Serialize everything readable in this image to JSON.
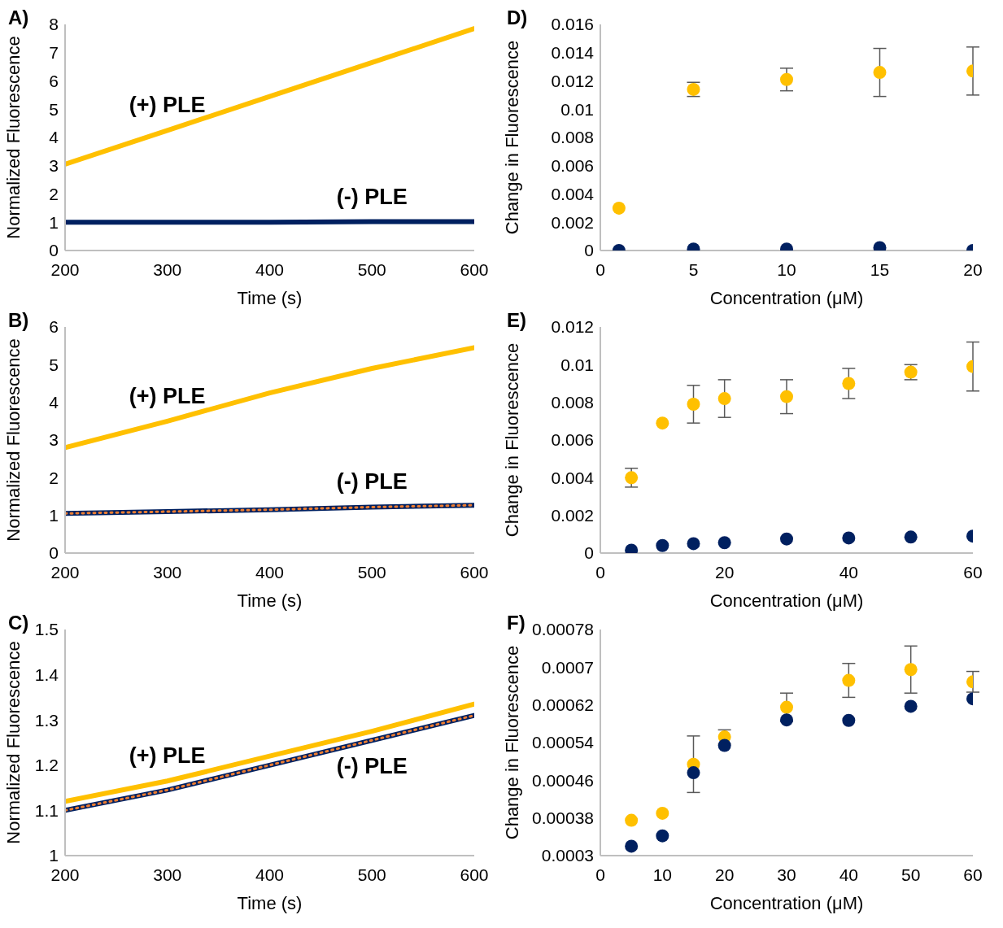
{
  "chart_data": [
    {
      "type": "line",
      "title": "A)",
      "xlabel": "Time (s)",
      "ylabel": "Normalized Fluorescence",
      "x": [
        200,
        300,
        400,
        500,
        600
      ],
      "xlim": [
        200,
        600
      ],
      "xticks": [
        200,
        300,
        400,
        500,
        600
      ],
      "ylim": [
        0,
        8
      ],
      "yticks": [
        0,
        1,
        2,
        3,
        4,
        5,
        6,
        7,
        8
      ],
      "marker": "none",
      "line_style": "solid",
      "series": [
        {
          "name": "(+) PLE",
          "color": "#ffc000",
          "values": [
            3.05,
            4.25,
            5.45,
            6.65,
            7.85
          ]
        },
        {
          "name": "(-) PLE",
          "color": "#002060",
          "values": [
            1.0,
            1.0,
            1.0,
            1.02,
            1.02
          ]
        }
      ]
    },
    {
      "type": "line",
      "title": "B)",
      "xlabel": "Time (s)",
      "ylabel": "Normalized Fluorescence",
      "x": [
        200,
        300,
        400,
        500,
        600
      ],
      "xlim": [
        200,
        600
      ],
      "xticks": [
        200,
        300,
        400,
        500,
        600
      ],
      "ylim": [
        0,
        6
      ],
      "yticks": [
        0,
        1,
        2,
        3,
        4,
        5,
        6
      ],
      "marker": "none",
      "line_style": "solid",
      "series": [
        {
          "name": "(+) PLE",
          "color": "#ffc000",
          "values": [
            2.8,
            3.5,
            4.25,
            4.9,
            5.45
          ]
        },
        {
          "name": "(-) PLE",
          "color": "#002060",
          "values": [
            1.05,
            1.1,
            1.15,
            1.22,
            1.27
          ]
        },
        {
          "color": "#ed7d31",
          "line_style": "dotted",
          "values": [
            1.05,
            1.1,
            1.15,
            1.22,
            1.27
          ]
        }
      ]
    },
    {
      "type": "line",
      "title": "C)",
      "xlabel": "Time (s)",
      "ylabel": "Normalized Fluorescence",
      "x": [
        200,
        300,
        400,
        500,
        600
      ],
      "xlim": [
        200,
        600
      ],
      "xticks": [
        200,
        300,
        400,
        500,
        600
      ],
      "ylim": [
        1,
        1.5
      ],
      "yticks": [
        1,
        1.1,
        1.2,
        1.3,
        1.4,
        1.5
      ],
      "marker": "none",
      "line_style": "solid",
      "series": [
        {
          "name": "(+) PLE",
          "color": "#ffc000",
          "values": [
            1.12,
            1.165,
            1.22,
            1.275,
            1.335
          ]
        },
        {
          "name": "(-) PLE",
          "color": "#002060",
          "values": [
            1.1,
            1.145,
            1.2,
            1.255,
            1.31
          ]
        },
        {
          "color": "#ed7d31",
          "line_style": "dotted",
          "values": [
            1.1,
            1.145,
            1.2,
            1.255,
            1.31
          ]
        }
      ]
    },
    {
      "type": "scatter",
      "title": "D)",
      "xlabel": "Concentration (μM)",
      "ylabel": "Change in Fluorescence",
      "x": [
        1,
        5,
        10,
        15,
        20
      ],
      "xlim": [
        0,
        20
      ],
      "xticks": [
        0,
        5,
        10,
        15,
        20
      ],
      "ylim": [
        0,
        0.016
      ],
      "yticks": [
        0,
        0.002,
        0.004,
        0.006,
        0.008,
        0.01,
        0.012,
        0.014,
        0.016
      ],
      "marker": "circle",
      "series": [
        {
          "color": "#ffc000",
          "values": [
            0.003,
            0.0114,
            0.0121,
            0.0126,
            0.0127
          ],
          "errors": [
            null,
            0.0005,
            0.0008,
            0.0017,
            0.0017
          ]
        },
        {
          "color": "#002060",
          "values": [
            0,
            0.0001,
            0.0001,
            0.0002,
            0
          ]
        }
      ]
    },
    {
      "type": "scatter",
      "title": "E)",
      "xlabel": "Concentration (μM)",
      "ylabel": "Change in Fluorescence",
      "x": [
        5,
        10,
        15,
        20,
        30,
        40,
        50,
        60
      ],
      "xlim": [
        0,
        60
      ],
      "xticks": [
        0,
        20,
        40,
        60
      ],
      "ylim": [
        0,
        0.012
      ],
      "yticks": [
        0,
        0.002,
        0.004,
        0.006,
        0.008,
        0.01,
        0.012
      ],
      "marker": "circle",
      "series": [
        {
          "color": "#ffc000",
          "values": [
            0.004,
            0.0069,
            0.0079,
            0.0082,
            0.0083,
            0.009,
            0.0096,
            0.0099
          ],
          "errors": [
            0.0005,
            null,
            0.001,
            0.001,
            0.0009,
            0.0008,
            0.0004,
            0.0013
          ]
        },
        {
          "color": "#002060",
          "values": [
            0.00015,
            0.0004,
            0.0005,
            0.00055,
            0.00075,
            0.0008,
            0.00085,
            0.0009
          ]
        }
      ]
    },
    {
      "type": "scatter",
      "title": "F)",
      "xlabel": "Concentration (μM)",
      "ylabel": "Change in Fluorescence",
      "x": [
        5,
        10,
        15,
        20,
        30,
        40,
        50,
        60
      ],
      "xlim": [
        0,
        60
      ],
      "xticks": [
        0,
        10,
        20,
        30,
        40,
        50,
        60
      ],
      "ylim": [
        0.0003,
        0.00078
      ],
      "yticks": [
        0.0003,
        0.00038,
        0.00046,
        0.00054,
        0.00062,
        0.0007,
        0.00078
      ],
      "marker": "circle",
      "series": [
        {
          "color": "#ffc000",
          "values": [
            0.000375,
            0.00039,
            0.000494,
            0.000552,
            0.000615,
            0.000672,
            0.000695,
            0.000669
          ],
          "errors": [
            null,
            null,
            6e-05,
            1.5e-05,
            3e-05,
            3.6e-05,
            5e-05,
            2.2e-05
          ]
        },
        {
          "color": "#002060",
          "values": [
            0.00032,
            0.000342,
            0.000476,
            0.000534,
            0.000588,
            0.000587,
            0.000617,
            0.000633
          ]
        }
      ]
    }
  ]
}
